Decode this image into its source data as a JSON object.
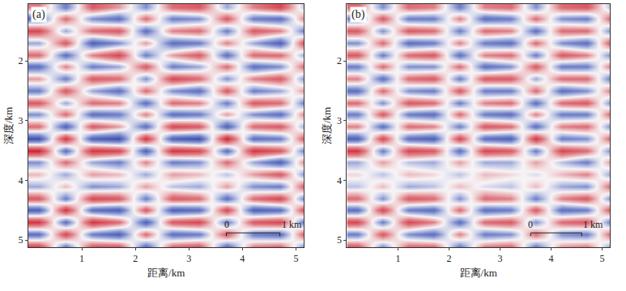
{
  "chart_data": [
    {
      "type": "heatmap",
      "panel_label": "(a)",
      "xlabel": "距离/km",
      "ylabel": "深度/km",
      "xlim": [
        0,
        5.15
      ],
      "ylim": [
        1.05,
        5.12
      ],
      "xticks": [
        1,
        2,
        3,
        4,
        5
      ],
      "yticks": [
        2,
        3,
        4,
        5
      ],
      "zlim": [
        -1,
        1
      ],
      "scale_bar": {
        "x": [
          3.7,
          4.7
        ],
        "y": 4.88,
        "labels": [
          "0",
          "1 km"
        ]
      },
      "x": [
        0.2,
        0.7,
        1.2,
        1.7,
        2.2,
        2.7,
        3.2,
        3.7,
        4.2,
        4.7,
        5.2
      ],
      "y": [
        1.1,
        1.3,
        1.5,
        1.7,
        1.9,
        2.1,
        2.3,
        2.5,
        2.7,
        2.9,
        3.1,
        3.3,
        3.5,
        3.7,
        3.9,
        4.1,
        4.3,
        4.5,
        4.7,
        4.9,
        5.1
      ],
      "z": [
        [
          0.4,
          -0.5,
          0.6,
          0.3,
          -0.4,
          0.5,
          0.6,
          -0.3,
          0.4,
          0.7,
          -0.3
        ],
        [
          -0.6,
          0.5,
          -0.4,
          -0.6,
          0.5,
          -0.5,
          -0.4,
          0.6,
          -0.5,
          -0.6,
          0.5
        ],
        [
          0.7,
          -0.3,
          0.5,
          0.6,
          -0.6,
          0.4,
          0.5,
          -0.5,
          0.6,
          0.4,
          -0.6
        ],
        [
          -0.3,
          0.6,
          -0.7,
          -0.4,
          0.3,
          -0.6,
          -0.5,
          0.4,
          -0.3,
          -0.7,
          0.8
        ],
        [
          0.5,
          -0.6,
          0.4,
          0.7,
          -0.5,
          0.3,
          0.6,
          -0.6,
          0.5,
          0.5,
          -0.4
        ],
        [
          -0.6,
          0.4,
          -0.5,
          -0.3,
          0.6,
          -0.5,
          -0.3,
          0.5,
          -0.6,
          -0.4,
          0.6
        ],
        [
          0.3,
          -0.5,
          0.6,
          0.5,
          -0.4,
          0.7,
          0.5,
          -0.4,
          0.4,
          0.6,
          -0.5
        ],
        [
          -0.5,
          0.6,
          -0.3,
          -0.6,
          0.5,
          -0.4,
          -0.6,
          0.6,
          -0.5,
          -0.3,
          0.4
        ],
        [
          0.6,
          -0.3,
          0.5,
          0.4,
          -0.6,
          0.5,
          0.4,
          -0.5,
          0.6,
          0.5,
          -0.6
        ],
        [
          -0.4,
          0.5,
          -0.6,
          -0.5,
          0.4,
          -0.6,
          -0.5,
          0.3,
          -0.4,
          -0.6,
          0.5
        ],
        [
          0.5,
          -0.7,
          0.6,
          0.3,
          -0.6,
          0.7,
          0.6,
          -0.7,
          0.5,
          0.6,
          -0.4
        ],
        [
          -0.8,
          0.8,
          -0.7,
          -0.8,
          0.8,
          -0.7,
          -0.8,
          0.9,
          -0.6,
          -0.5,
          0.7
        ],
        [
          0.9,
          -0.6,
          0.8,
          0.7,
          -0.7,
          0.8,
          0.7,
          -0.6,
          0.8,
          0.6,
          -0.6
        ],
        [
          -0.4,
          0.5,
          -0.3,
          -0.5,
          0.4,
          -0.5,
          -0.4,
          0.5,
          -0.3,
          -0.7,
          0.5
        ],
        [
          0.2,
          -0.3,
          0.3,
          0.2,
          -0.3,
          0.3,
          0.2,
          -0.2,
          0.3,
          0.6,
          -0.5
        ],
        [
          -0.3,
          0.2,
          -0.4,
          -0.3,
          0.3,
          -0.2,
          -0.3,
          0.3,
          -0.4,
          -0.5,
          0.7
        ],
        [
          0.6,
          -0.5,
          0.7,
          0.6,
          -0.5,
          0.6,
          0.5,
          -0.6,
          0.5,
          0.7,
          -0.6
        ],
        [
          -0.7,
          0.8,
          -0.6,
          -0.7,
          0.6,
          -0.7,
          -0.6,
          0.7,
          -0.7,
          -0.6,
          0.8
        ],
        [
          0.8,
          -0.6,
          0.8,
          0.5,
          -0.7,
          0.6,
          0.7,
          -0.5,
          0.6,
          0.7,
          -0.7
        ],
        [
          -0.6,
          0.7,
          -0.5,
          -0.7,
          0.5,
          -0.6,
          -0.5,
          0.6,
          -0.5,
          -0.6,
          0.7
        ],
        [
          0.7,
          -0.5,
          0.6,
          0.6,
          -0.6,
          0.5,
          0.6,
          -0.6,
          0.4,
          0.5,
          -0.5
        ]
      ]
    },
    {
      "type": "heatmap",
      "panel_label": "(b)",
      "xlabel": "距离/km",
      "ylabel": "深度/km",
      "xlim": [
        0,
        5.15
      ],
      "ylim": [
        1.05,
        5.12
      ],
      "xticks": [
        1,
        2,
        3,
        4,
        5
      ],
      "yticks": [
        2,
        3,
        4,
        5
      ],
      "zlim": [
        -1,
        1
      ],
      "scale_bar": {
        "x": [
          3.6,
          4.6
        ],
        "y": 4.88,
        "labels": [
          "0",
          "1 km"
        ]
      },
      "x": [
        0.2,
        0.7,
        1.2,
        1.7,
        2.2,
        2.7,
        3.2,
        3.7,
        4.2,
        4.7,
        5.2
      ],
      "y": [
        1.1,
        1.3,
        1.5,
        1.7,
        1.9,
        2.1,
        2.3,
        2.5,
        2.7,
        2.9,
        3.1,
        3.3,
        3.5,
        3.7,
        3.9,
        4.1,
        4.3,
        4.5,
        4.7,
        4.9,
        5.1
      ],
      "z": [
        [
          0.5,
          -0.4,
          0.5,
          0.4,
          -0.5,
          0.4,
          0.5,
          -0.4,
          0.5,
          0.6,
          -0.3
        ],
        [
          -0.5,
          0.6,
          -0.5,
          -0.5,
          0.4,
          -0.6,
          -0.5,
          0.5,
          -0.4,
          -0.5,
          0.6
        ],
        [
          0.6,
          -0.4,
          0.6,
          0.5,
          -0.5,
          0.5,
          0.4,
          -0.6,
          0.5,
          0.5,
          -0.5
        ],
        [
          -0.4,
          0.5,
          -0.6,
          -0.5,
          0.4,
          -0.5,
          -0.6,
          0.5,
          -0.4,
          -0.6,
          0.7
        ],
        [
          0.6,
          -0.5,
          0.5,
          0.6,
          -0.6,
          0.4,
          0.5,
          -0.5,
          0.6,
          0.4,
          -0.5
        ],
        [
          -0.5,
          0.5,
          -0.4,
          -0.4,
          0.5,
          -0.6,
          -0.4,
          0.6,
          -0.5,
          -0.5,
          0.5
        ],
        [
          0.4,
          -0.6,
          0.5,
          0.6,
          -0.5,
          0.6,
          0.6,
          -0.3,
          0.5,
          0.5,
          -0.6
        ],
        [
          -0.6,
          0.5,
          -0.4,
          -0.5,
          0.6,
          -0.5,
          -0.5,
          0.5,
          -0.6,
          -0.4,
          0.5
        ],
        [
          0.5,
          -0.4,
          0.6,
          0.5,
          -0.5,
          0.4,
          0.5,
          -0.6,
          0.5,
          0.6,
          -0.5
        ],
        [
          -0.5,
          0.6,
          -0.5,
          -0.6,
          0.5,
          -0.5,
          -0.6,
          0.4,
          -0.5,
          -0.5,
          0.6
        ],
        [
          0.4,
          -0.6,
          0.5,
          0.4,
          -0.5,
          0.6,
          0.5,
          -0.6,
          0.4,
          0.5,
          -0.5
        ],
        [
          -0.7,
          0.7,
          -0.6,
          -0.7,
          0.7,
          -0.6,
          -0.7,
          0.8,
          -0.5,
          -0.4,
          0.6
        ],
        [
          0.8,
          -0.5,
          0.7,
          0.6,
          -0.6,
          0.7,
          0.6,
          -0.5,
          0.7,
          0.5,
          -0.5
        ],
        [
          -0.3,
          0.3,
          -0.2,
          -0.3,
          0.3,
          -0.3,
          -0.3,
          0.3,
          -0.2,
          -0.5,
          0.4
        ],
        [
          0.1,
          -0.2,
          0.2,
          0.1,
          -0.2,
          0.2,
          0.1,
          -0.1,
          0.2,
          0.4,
          -0.4
        ],
        [
          -0.2,
          0.2,
          -0.3,
          -0.2,
          0.2,
          -0.1,
          -0.2,
          0.2,
          -0.3,
          -0.4,
          0.6
        ],
        [
          0.5,
          -0.4,
          0.6,
          0.5,
          -0.4,
          0.5,
          0.4,
          -0.5,
          0.4,
          0.6,
          -0.5
        ],
        [
          -0.6,
          0.7,
          -0.5,
          -0.6,
          0.5,
          -0.6,
          -0.5,
          0.6,
          -0.6,
          -0.5,
          0.7
        ],
        [
          0.7,
          -0.5,
          0.7,
          0.4,
          -0.6,
          0.5,
          0.6,
          -0.4,
          0.5,
          0.6,
          -0.6
        ],
        [
          -0.5,
          0.6,
          -0.4,
          -0.6,
          0.4,
          -0.5,
          -0.4,
          0.5,
          -0.4,
          -0.5,
          0.6
        ],
        [
          0.6,
          -0.4,
          0.5,
          0.5,
          -0.5,
          0.4,
          0.5,
          -0.5,
          0.3,
          0.4,
          -0.4
        ]
      ]
    }
  ]
}
